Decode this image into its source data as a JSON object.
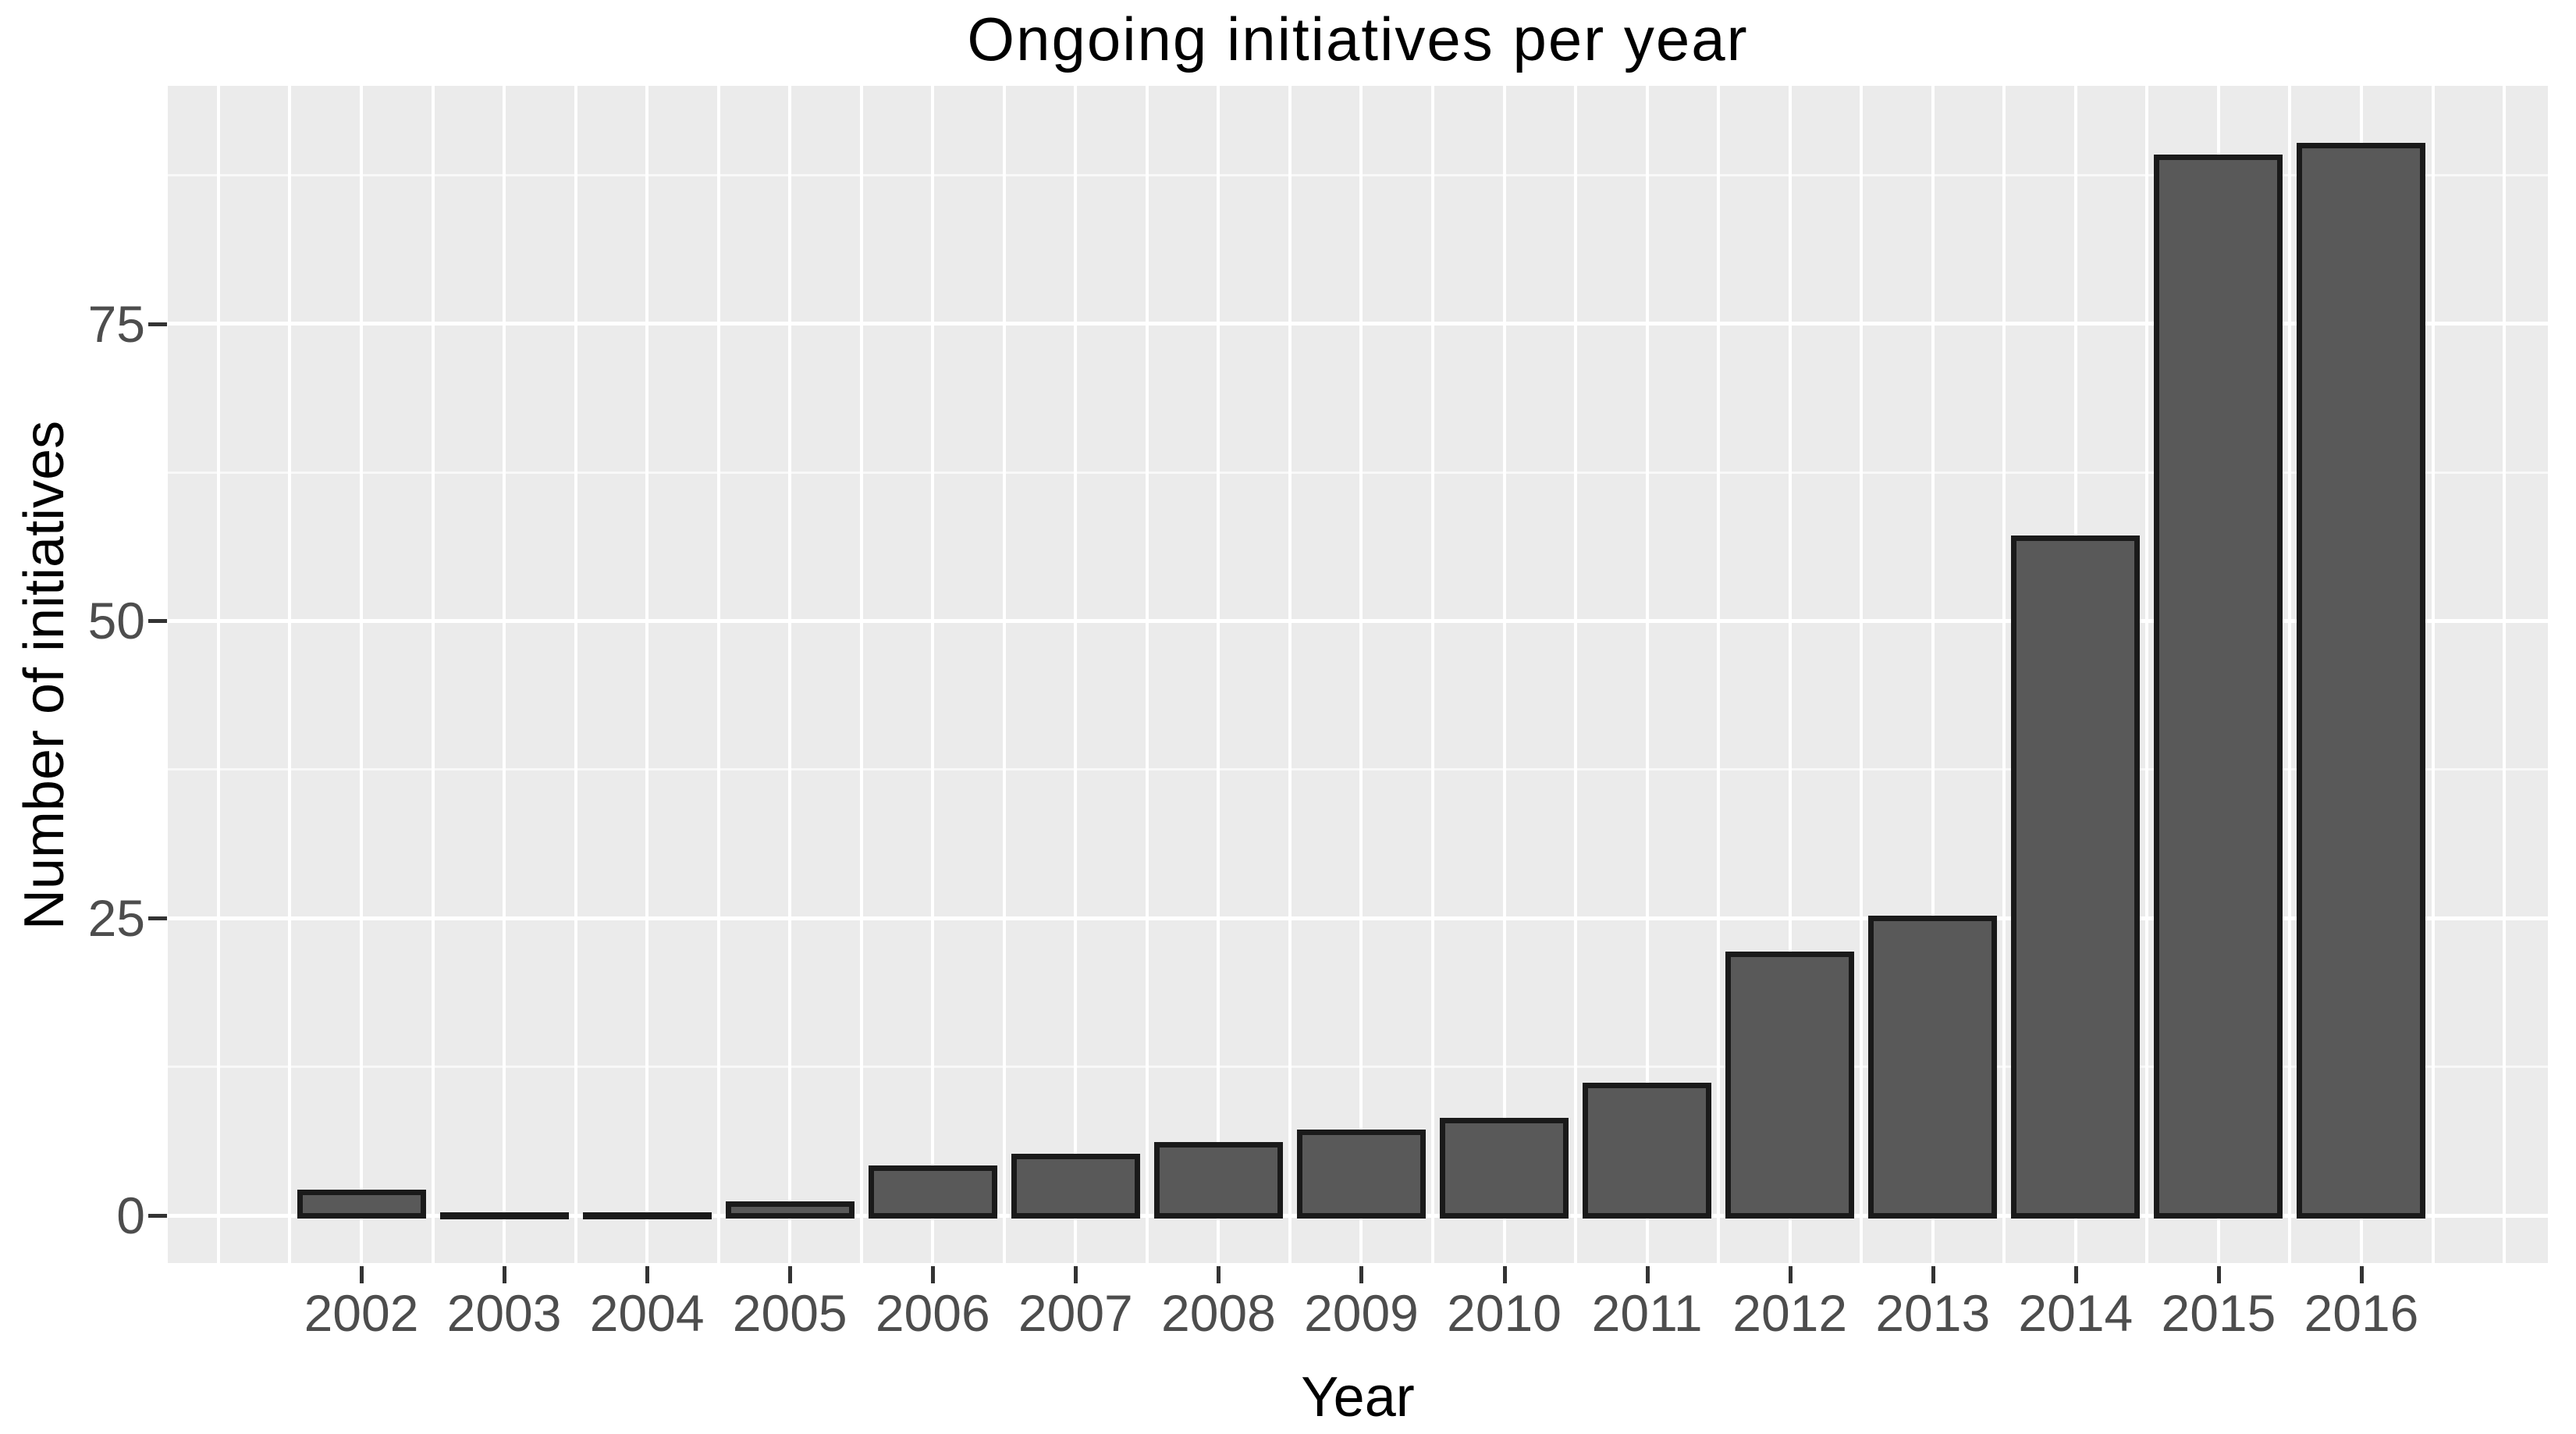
{
  "chart_data": {
    "type": "bar",
    "title": "Ongoing initiatives per year",
    "xlabel": "Year",
    "ylabel": "Number of initiatives",
    "categories": [
      "2002",
      "2003",
      "2004",
      "2005",
      "2006",
      "2007",
      "2008",
      "2009",
      "2010",
      "2011",
      "2012",
      "2013",
      "2014",
      "2015",
      "2016"
    ],
    "values": [
      2,
      0,
      0,
      1,
      4,
      5,
      6,
      7,
      8,
      11,
      22,
      25,
      57,
      89,
      90
    ],
    "ylim": [
      -4,
      95
    ],
    "yticks": [
      0,
      25,
      50,
      75
    ],
    "ytick_labels": [
      "0",
      "25",
      "50",
      "75"
    ],
    "grid": "horizontal major+minor and vertical white gridlines on gray panel",
    "legend_position": "none"
  },
  "style": {
    "page_bg": "#FFFFFF",
    "panel_bg": "#EBEBEB",
    "bar_fill": "#595959",
    "bar_border": "#1A1A1A",
    "grid_major_color": "#FFFFFF",
    "grid_minor_color": "rgba(255,255,255,0.65)",
    "tick_label_color": "#4D4D4D",
    "axis_title_color": "#000000",
    "title_color": "#000000",
    "tick_mark_color": "#333333"
  }
}
